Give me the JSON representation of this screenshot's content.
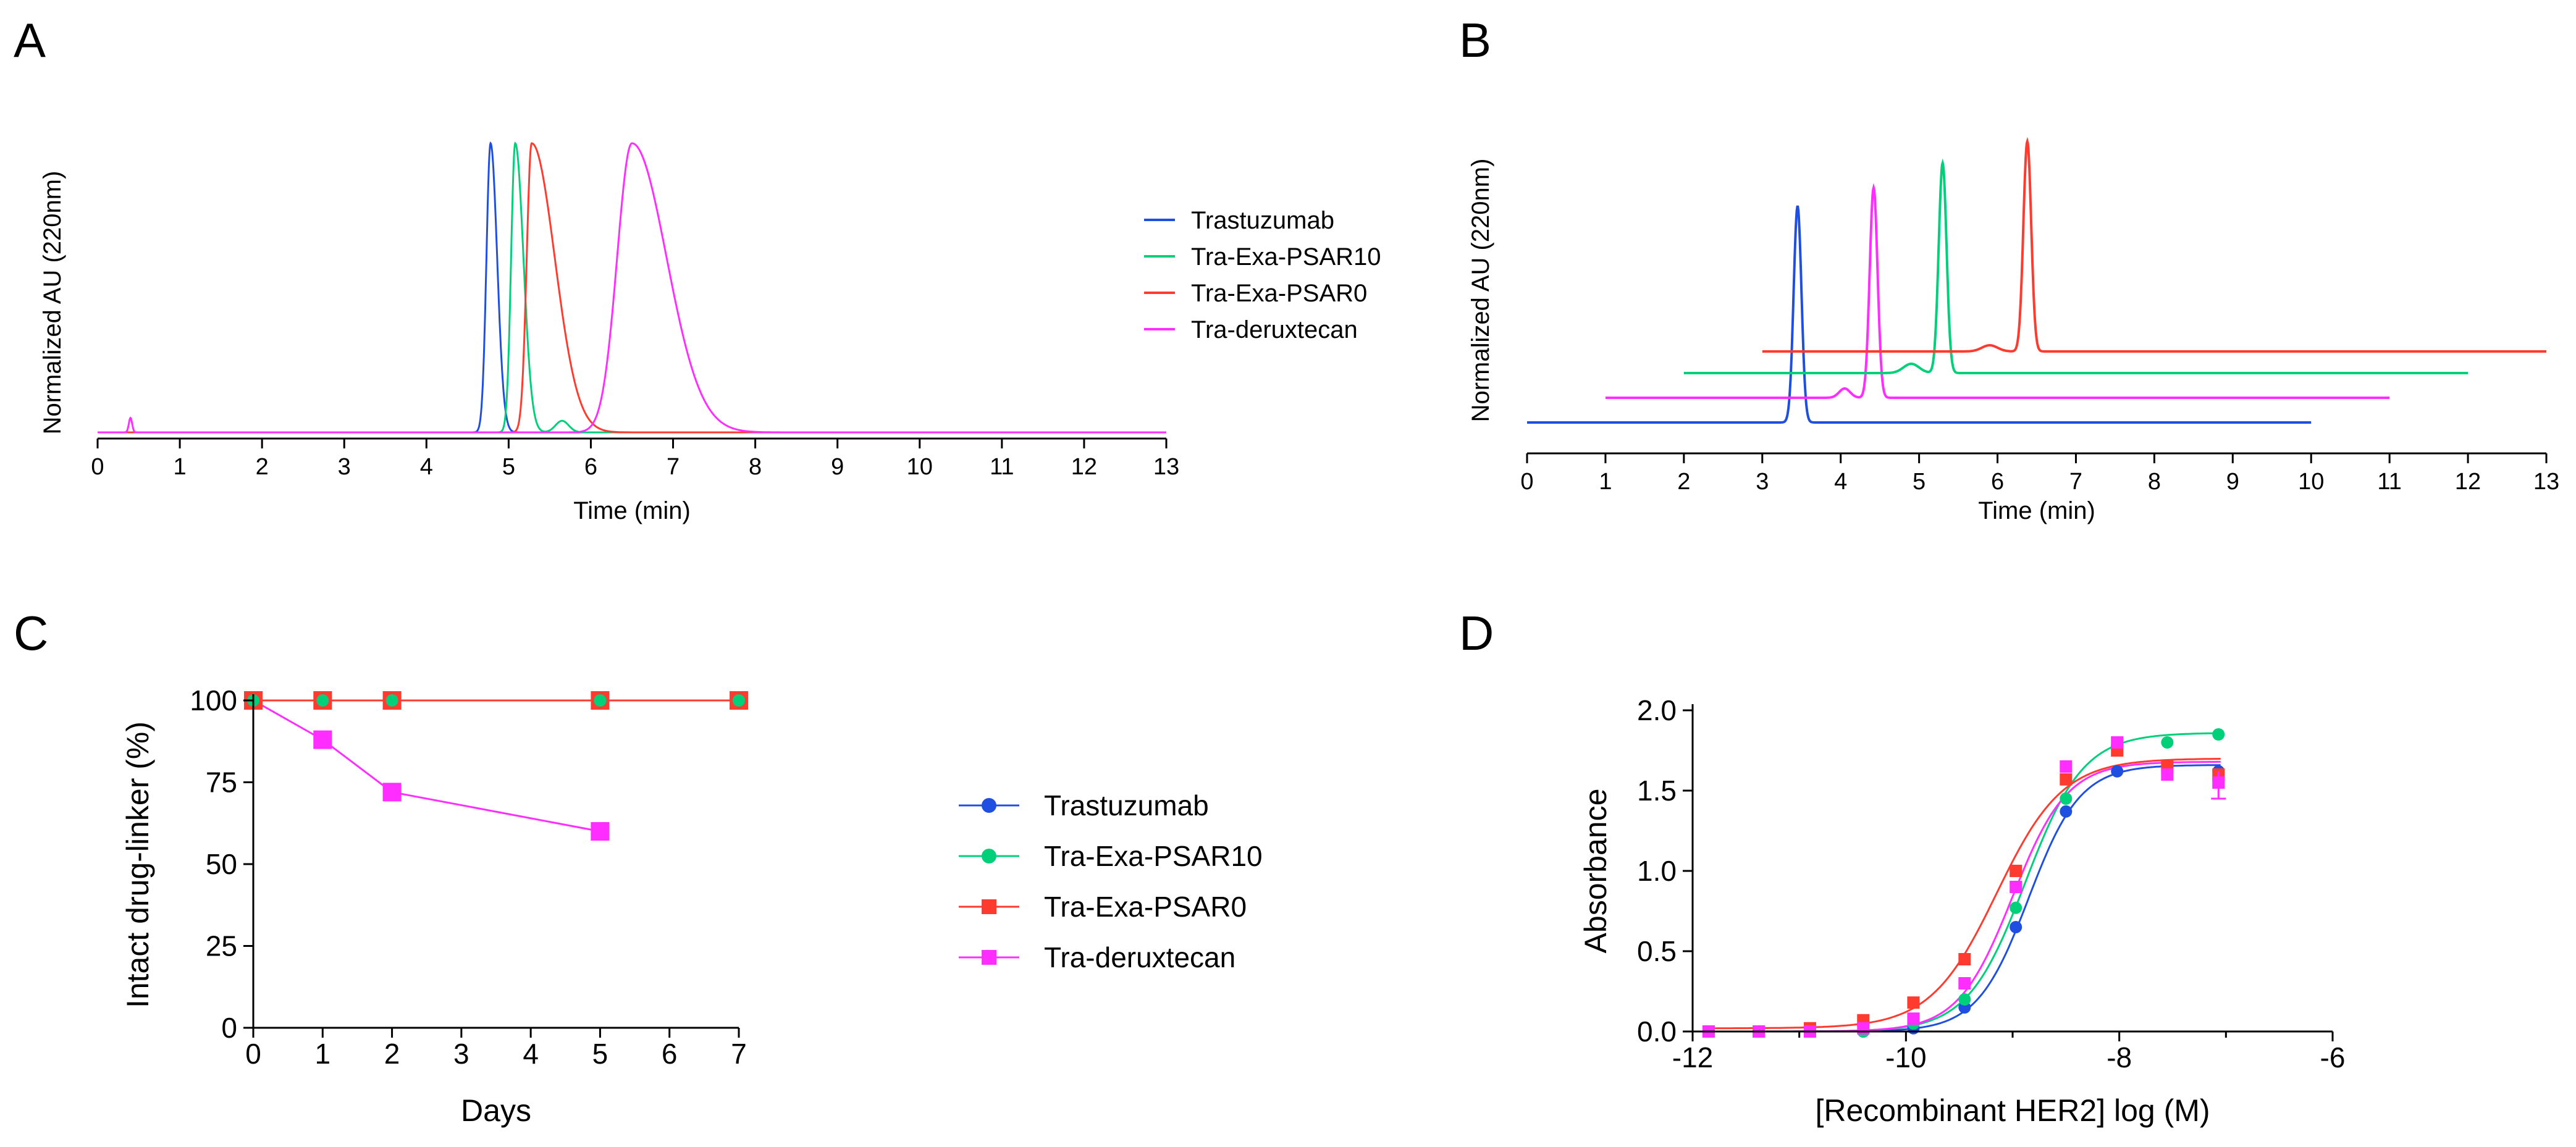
{
  "chart_data": [
    {
      "panel": "A",
      "type": "line",
      "title": "",
      "xlabel": "Time (min)",
      "ylabel": "Normalized AU (220nm)",
      "xlim": [
        0,
        13
      ],
      "xticks": [
        "0",
        "1",
        "2",
        "3",
        "4",
        "5",
        "6",
        "7",
        "8",
        "9",
        "10",
        "11",
        "12",
        "13"
      ],
      "ylim": [
        0,
        1.05
      ],
      "legend": "right",
      "series": [
        {
          "name": "Trastuzumab",
          "color": "#1f4fe0",
          "peaks": [
            {
              "x": 4.78,
              "h": 1.0,
              "w": 0.05,
              "tail": 0.08
            }
          ]
        },
        {
          "name": "Tra-Exa-PSAR10",
          "color": "#00d07a",
          "peaks": [
            {
              "x": 5.08,
              "h": 1.0,
              "w": 0.05,
              "tail": 0.1
            },
            {
              "x": 5.65,
              "h": 0.04,
              "w": 0.08,
              "tail": 0.05
            }
          ]
        },
        {
          "name": "Tra-Exa-PSAR0",
          "color": "#ff3b2f",
          "peaks": [
            {
              "x": 5.28,
              "h": 1.0,
              "w": 0.06,
              "tail": 0.28
            }
          ]
        },
        {
          "name": "Tra-deruxtecan",
          "color": "#ff2dff",
          "peaks": [
            {
              "x": 6.5,
              "h": 1.0,
              "w": 0.18,
              "tail": 0.42
            },
            {
              "x": 0.4,
              "h": 0.05,
              "w": 0.02,
              "tail": 0.02
            }
          ]
        }
      ]
    },
    {
      "panel": "B",
      "type": "line",
      "title": "",
      "xlabel": "Time (min)",
      "ylabel": "Normalized AU (220nm)",
      "xlim": [
        0,
        13
      ],
      "xticks": [
        "0",
        "1",
        "2",
        "3",
        "4",
        "5",
        "6",
        "7",
        "8",
        "9",
        "10",
        "11",
        "12",
        "13"
      ],
      "ylim": [
        0,
        1.0
      ],
      "series": [
        {
          "name": "Trastuzumab",
          "color": "#1f4fe0",
          "x_start": 0,
          "x_end": 10,
          "offset": 0.0,
          "peaks": [
            {
              "x": 3.45,
              "h": 0.7,
              "w": 0.05
            }
          ]
        },
        {
          "name": "Tra-deruxtecan",
          "color": "#ff2dff",
          "x_start": 1,
          "x_end": 11,
          "offset": 0.08,
          "peaks": [
            {
              "x": 4.42,
              "h": 0.68,
              "w": 0.05
            },
            {
              "x": 4.05,
              "h": 0.03,
              "w": 0.07
            }
          ]
        },
        {
          "name": "Tra-Exa-PSAR10",
          "color": "#00d07a",
          "x_start": 2,
          "x_end": 12,
          "offset": 0.16,
          "peaks": [
            {
              "x": 5.3,
              "h": 0.68,
              "w": 0.05
            },
            {
              "x": 4.9,
              "h": 0.03,
              "w": 0.1
            }
          ]
        },
        {
          "name": "Tra-Exa-PSAR0",
          "color": "#ff3b2f",
          "x_start": 3,
          "x_end": 13,
          "offset": 0.23,
          "peaks": [
            {
              "x": 6.38,
              "h": 0.68,
              "w": 0.05
            },
            {
              "x": 5.9,
              "h": 0.02,
              "w": 0.1
            }
          ]
        }
      ]
    },
    {
      "panel": "C",
      "type": "line",
      "title": "",
      "xlabel": "Days",
      "ylabel": "Intact drug-linker (%)",
      "xlim": [
        0,
        7
      ],
      "xticks": [
        "0",
        "1",
        "2",
        "3",
        "4",
        "5",
        "6",
        "7"
      ],
      "ylim": [
        0,
        100
      ],
      "yticks": [
        "0",
        "25",
        "50",
        "75",
        "100"
      ],
      "legend": "right",
      "series": [
        {
          "name": "Trastuzumab",
          "color": "#1f4fe0",
          "marker": "circle",
          "x": [],
          "y": []
        },
        {
          "name": "Tra-Exa-PSAR10",
          "color": "#00d07a",
          "marker": "circle",
          "x": [
            0,
            1,
            2,
            5,
            7
          ],
          "y": [
            100,
            100,
            100,
            100,
            100
          ]
        },
        {
          "name": "Tra-Exa-PSAR0",
          "color": "#ff3b2f",
          "marker": "square",
          "x": [
            0,
            1,
            2,
            5,
            7
          ],
          "y": [
            100,
            100,
            100,
            100,
            100
          ]
        },
        {
          "name": "Tra-deruxtecan",
          "color": "#ff2dff",
          "marker": "square",
          "x": [
            0,
            1,
            2,
            5
          ],
          "y": [
            100,
            88,
            72,
            60
          ]
        }
      ]
    },
    {
      "panel": "D",
      "type": "scatter",
      "title": "",
      "xlabel": "[Recombinant HER2] log (M)",
      "ylabel": "Absorbance",
      "xlim": [
        -12,
        -6
      ],
      "xticks": [
        "-12",
        "-10",
        "-8",
        "-6"
      ],
      "ylim": [
        0,
        2.0
      ],
      "yticks": [
        "0.0",
        "0.5",
        "1.0",
        "1.5",
        "2.0"
      ],
      "series": [
        {
          "name": "Trastuzumab",
          "color": "#1f4fe0",
          "marker": "circle",
          "x": [
            -11.85,
            -10.9,
            -10.4,
            -9.93,
            -9.45,
            -8.97,
            -8.5,
            -8.02,
            -7.55,
            -7.07
          ],
          "y": [
            0.0,
            0.0,
            0.0,
            0.02,
            0.15,
            0.65,
            1.37,
            1.62,
            1.65,
            1.62
          ],
          "fit": {
            "bottom": 0.0,
            "top": 1.66,
            "logec50": -8.85,
            "hill": 1.8
          }
        },
        {
          "name": "Tra-Exa-PSAR10",
          "color": "#00d07a",
          "marker": "circle",
          "x": [
            -11.85,
            -10.9,
            -10.4,
            -9.93,
            -9.45,
            -8.97,
            -8.5,
            -8.02,
            -7.55,
            -7.07
          ],
          "y": [
            0.0,
            0.0,
            0.0,
            0.05,
            0.2,
            0.77,
            1.45,
            1.78,
            1.8,
            1.85
          ],
          "fit": {
            "bottom": 0.0,
            "top": 1.86,
            "logec50": -8.88,
            "hill": 1.6
          }
        },
        {
          "name": "Tra-Exa-PSAR0",
          "color": "#ff3b2f",
          "marker": "square",
          "x": [
            -11.85,
            -10.9,
            -10.4,
            -9.93,
            -9.45,
            -8.97,
            -8.5,
            -8.02,
            -7.55,
            -7.07
          ],
          "y": [
            0.0,
            0.02,
            0.07,
            0.18,
            0.45,
            1.0,
            1.57,
            1.75,
            1.65,
            1.6
          ],
          "fit": {
            "bottom": 0.02,
            "top": 1.7,
            "logec50": -9.15,
            "hill": 1.4
          }
        },
        {
          "name": "Tra-deruxtecan",
          "color": "#ff2dff",
          "marker": "square",
          "x": [
            -11.85,
            -11.38,
            -10.9,
            -10.4,
            -9.93,
            -9.45,
            -8.97,
            -8.5,
            -8.02,
            -7.55,
            -7.07
          ],
          "y": [
            0.0,
            0.0,
            0.0,
            0.02,
            0.08,
            0.3,
            0.9,
            1.65,
            1.8,
            1.6,
            1.55
          ],
          "fit": {
            "bottom": 0.0,
            "top": 1.68,
            "logec50": -9.0,
            "hill": 1.7
          }
        }
      ]
    }
  ]
}
